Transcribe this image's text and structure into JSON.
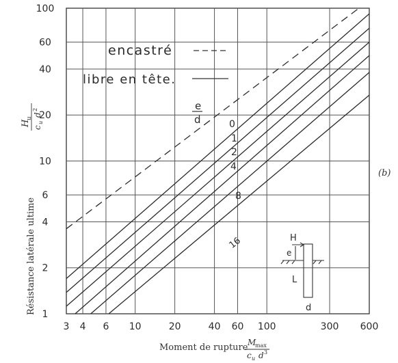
{
  "chart_data": {
    "type": "line",
    "xscale": "log",
    "yscale": "log",
    "xlim": [
      3,
      600
    ],
    "ylim": [
      1,
      100
    ],
    "grid": true,
    "x_ticks": [
      {
        "label": "3",
        "value": 3
      },
      {
        "label": "4",
        "value": 4
      },
      {
        "label": "6",
        "value": 6
      },
      {
        "label": "10",
        "value": 10
      },
      {
        "label": "20",
        "value": 20
      },
      {
        "label": "40",
        "value": 40
      },
      {
        "label": "60",
        "value": 60
      },
      {
        "label": "100",
        "value": 100
      },
      {
        "label": "300",
        "value": 300
      },
      {
        "label": "600",
        "value": 600
      }
    ],
    "y_ticks": [
      {
        "label": "1",
        "value": 1
      },
      {
        "label": "2",
        "value": 2
      },
      {
        "label": "4",
        "value": 4
      },
      {
        "label": "6",
        "value": 6
      },
      {
        "label": "10",
        "value": 10
      },
      {
        "label": "20",
        "value": 20
      },
      {
        "label": "40",
        "value": 40
      },
      {
        "label": "60",
        "value": 60
      },
      {
        "label": "100",
        "value": 100
      }
    ],
    "xlabel": "Moment de rupture",
    "xlabel_num": "M",
    "xlabel_num_sub": "max",
    "xlabel_den": "c",
    "xlabel_den_sub": "u",
    "xlabel_den_tail": "d",
    "xlabel_den_exp": "3",
    "ylabel": "Résistance latérale ultime",
    "ylabel_num": "H",
    "ylabel_num_sub": "u",
    "ylabel_den": "c",
    "ylabel_den_sub": "u",
    "ylabel_den_tail": "d",
    "ylabel_den_exp": "2",
    "panel_label": "(b)",
    "legend": [
      {
        "label": "encastré",
        "style": "dashed"
      },
      {
        "label": "libre en tête.",
        "style": "solid"
      }
    ],
    "param_label_num": "e",
    "param_label_den": "d",
    "series": [
      {
        "name": "encastré",
        "style": "dashed",
        "x": [
          3,
          500
        ],
        "y": [
          3.6,
          100
        ]
      },
      {
        "name": "0",
        "style": "solid",
        "x": [
          3,
          600
        ],
        "y": [
          1.7,
          92
        ]
      },
      {
        "name": "1",
        "style": "solid",
        "x": [
          3,
          600
        ],
        "y": [
          1.38,
          74
        ]
      },
      {
        "name": "2",
        "style": "solid",
        "x": [
          3,
          600
        ],
        "y": [
          1.12,
          60
        ]
      },
      {
        "name": "4",
        "style": "solid",
        "x": [
          3.5,
          600
        ],
        "y": [
          1,
          49
        ]
      },
      {
        "name": "8",
        "style": "solid",
        "x": [
          4.6,
          600
        ],
        "y": [
          1,
          38
        ]
      },
      {
        "name": "16",
        "style": "solid",
        "x": [
          6.3,
          600
        ],
        "y": [
          1,
          27
        ]
      }
    ]
  },
  "inset": {
    "h_label": "H",
    "e_label": "e",
    "l_label": "L",
    "d_label": "d"
  }
}
